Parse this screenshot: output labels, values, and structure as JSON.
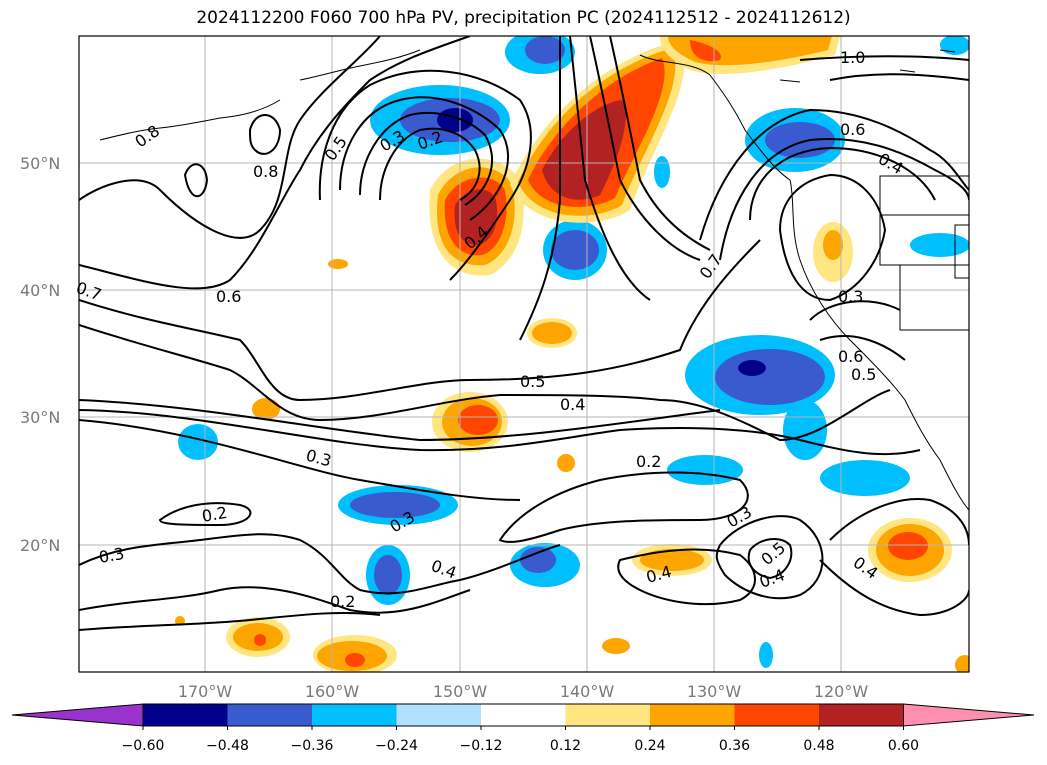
{
  "title": "2024112200 F060 700 hPa PV, precipitation PC (2024112512 - 2024112612)",
  "map": {
    "lat_labels": [
      "50°N",
      "40°N",
      "30°N",
      "20°N"
    ],
    "lon_labels": [
      "170°W",
      "160°W",
      "150°W",
      "140°W",
      "130°W",
      "120°W"
    ],
    "contour_labels": [
      "1.0",
      "0.8",
      "0.8",
      "0.5",
      "0.3",
      "0.2",
      "0.4",
      "0.7",
      "0.6",
      "0.4",
      "0.3",
      "0.6",
      "0.5",
      "0.7",
      "0.6",
      "0.5",
      "0.4",
      "0.2",
      "0.3",
      "0.2",
      "0.3",
      "0.4",
      "0.3",
      "0.2",
      "0.4",
      "0.3",
      "0.5",
      "0.4",
      "0.4"
    ]
  },
  "colorbar": {
    "ticks": [
      "−0.60",
      "−0.48",
      "−0.36",
      "−0.24",
      "−0.12",
      "0.12",
      "0.24",
      "0.36",
      "0.48",
      "0.60"
    ],
    "colors": [
      "#9933cc",
      "#00008b",
      "#3a5bd0",
      "#00bfff",
      "#b0e2ff",
      "#ffffff",
      "#ffe680",
      "#ffa500",
      "#ff4500",
      "#b22222",
      "#ff8fb0"
    ]
  }
}
